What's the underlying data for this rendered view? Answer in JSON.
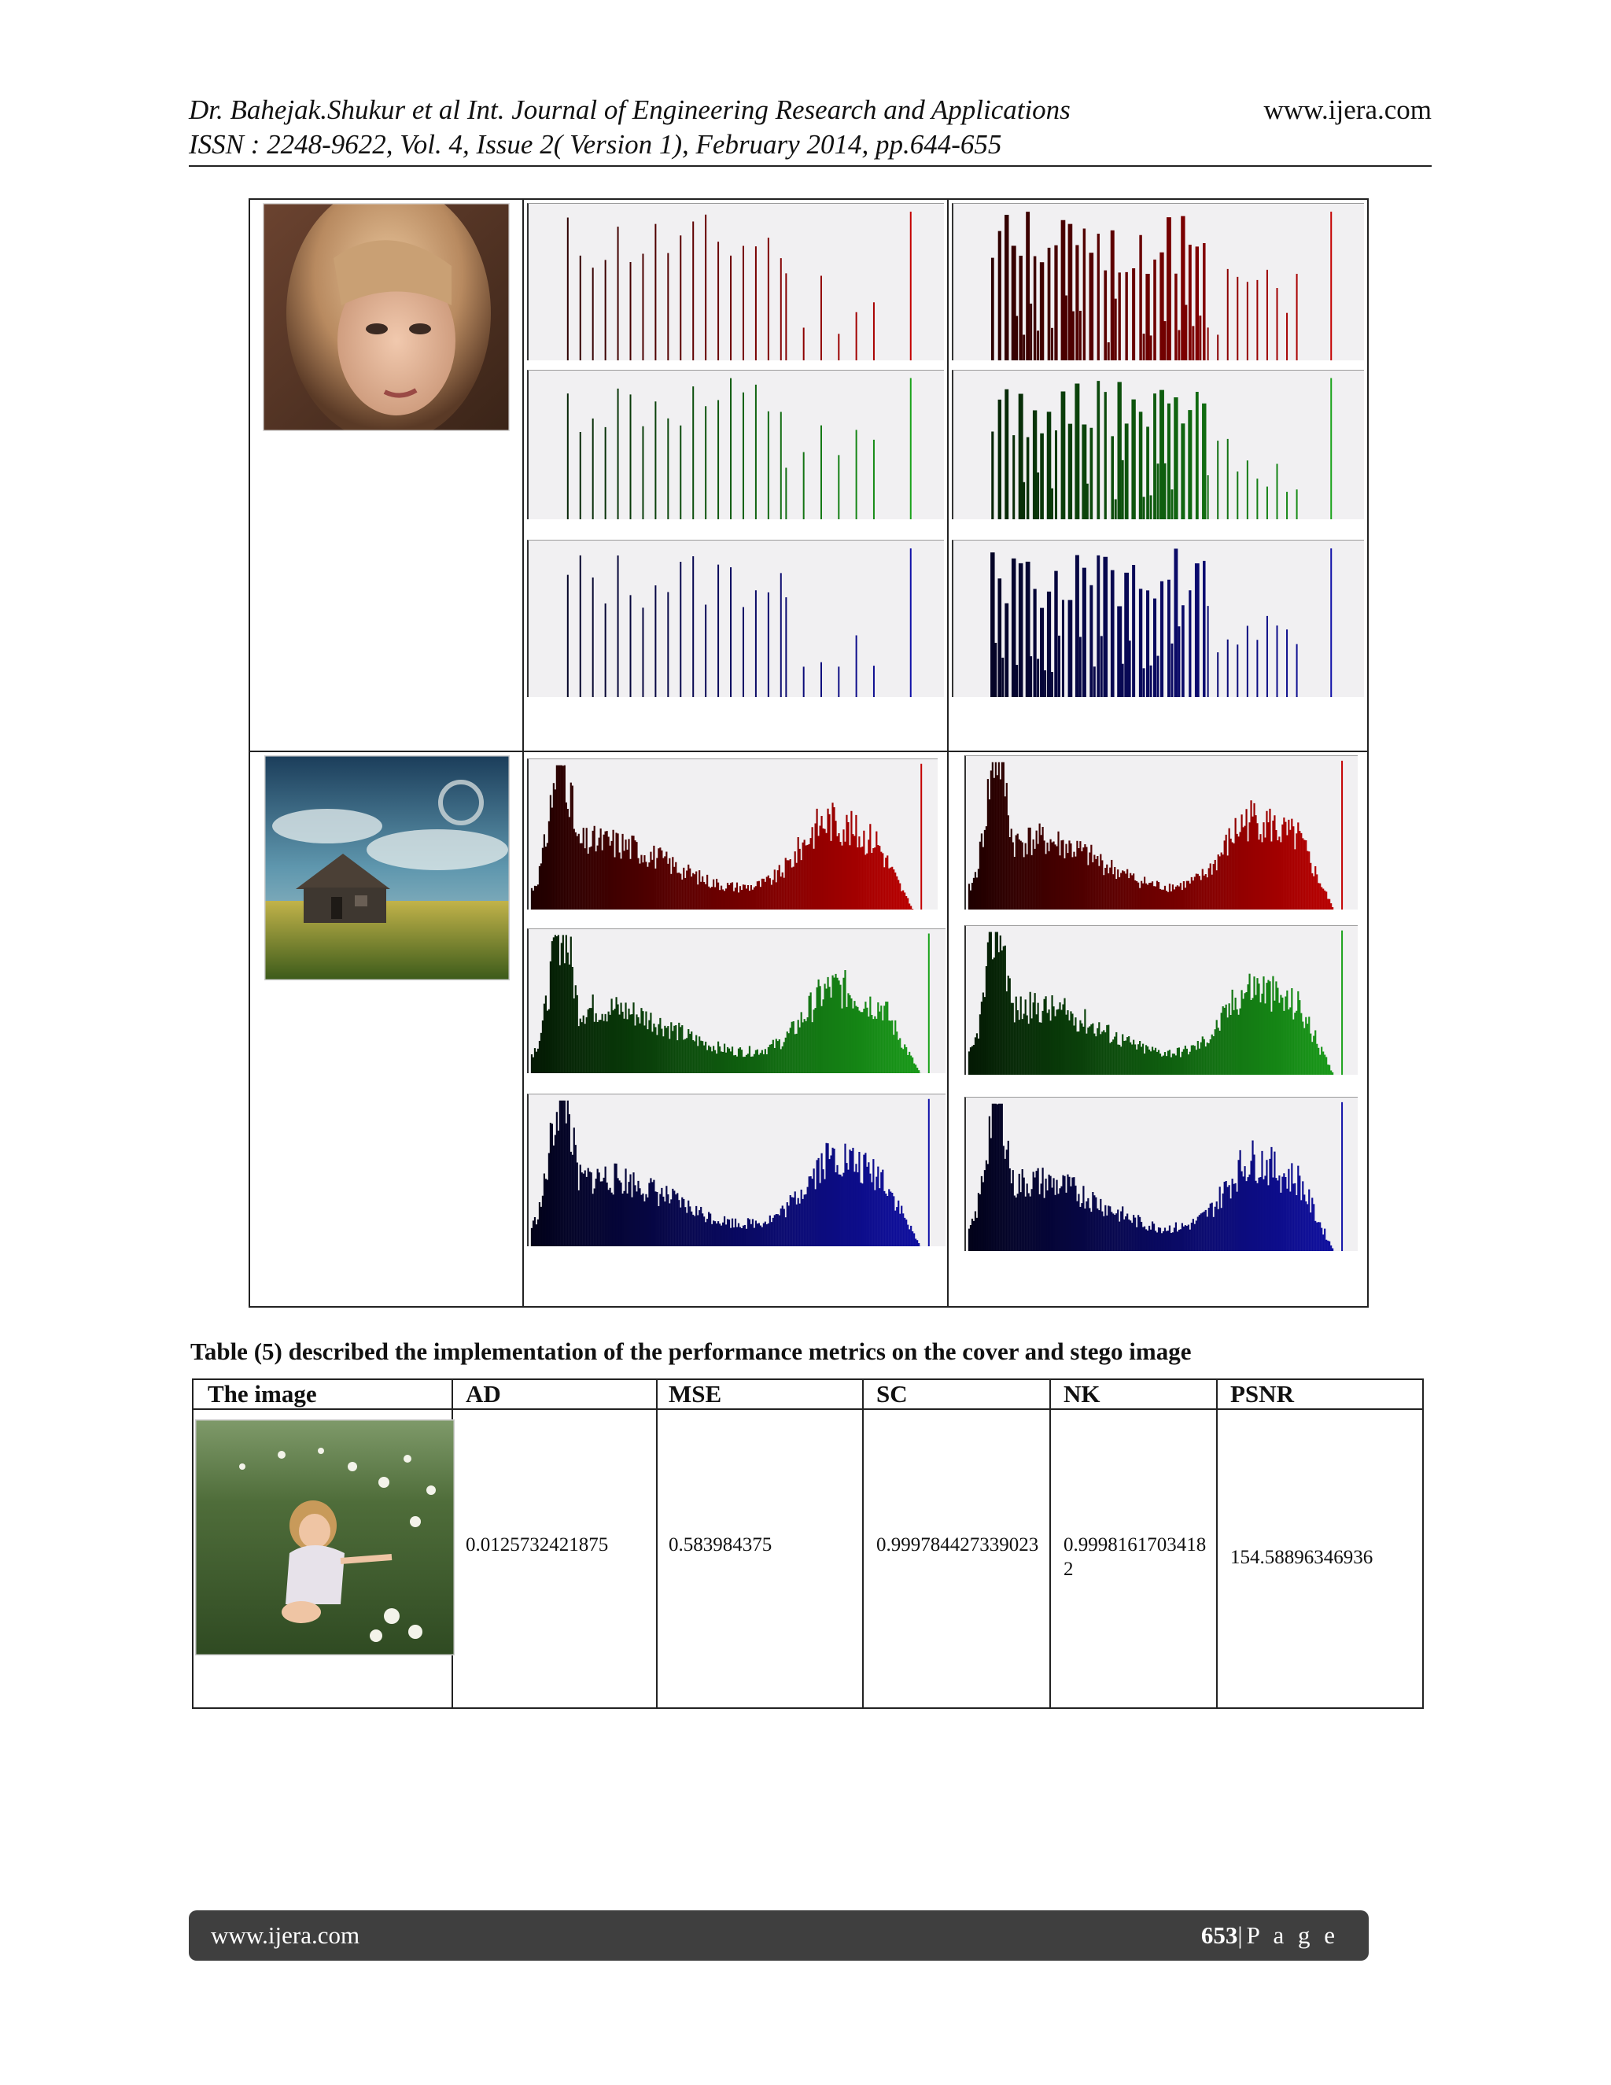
{
  "header": {
    "line1": "Dr. Bahejak.Shukur et al Int. Journal of Engineering Research and Applications",
    "line2": "ISSN : 2248-9622, Vol. 4, Issue 2( Version 1), February 2014, pp.644-655",
    "site": "www.ijera.com"
  },
  "figure": {
    "colors": {
      "red": "#c40000",
      "green": "#1aa21a",
      "blue": "#1010a8",
      "panel": "#f1f0f2"
    }
  },
  "table": {
    "caption": "Table (5) described the implementation of the performance metrics on the cover and stego image",
    "headers": [
      "The image",
      "AD",
      "MSE",
      "SC",
      "NK",
      "PSNR"
    ],
    "row": {
      "ad": "0.0125732421875",
      "mse": "0.583984375",
      "sc": "0.999784427339023",
      "nk": "0.99981617034182",
      "psnr": "154.58896346936"
    }
  },
  "footer": {
    "site": "www.ijera.com",
    "page_number": "653",
    "page_label": "|P a g e"
  }
}
